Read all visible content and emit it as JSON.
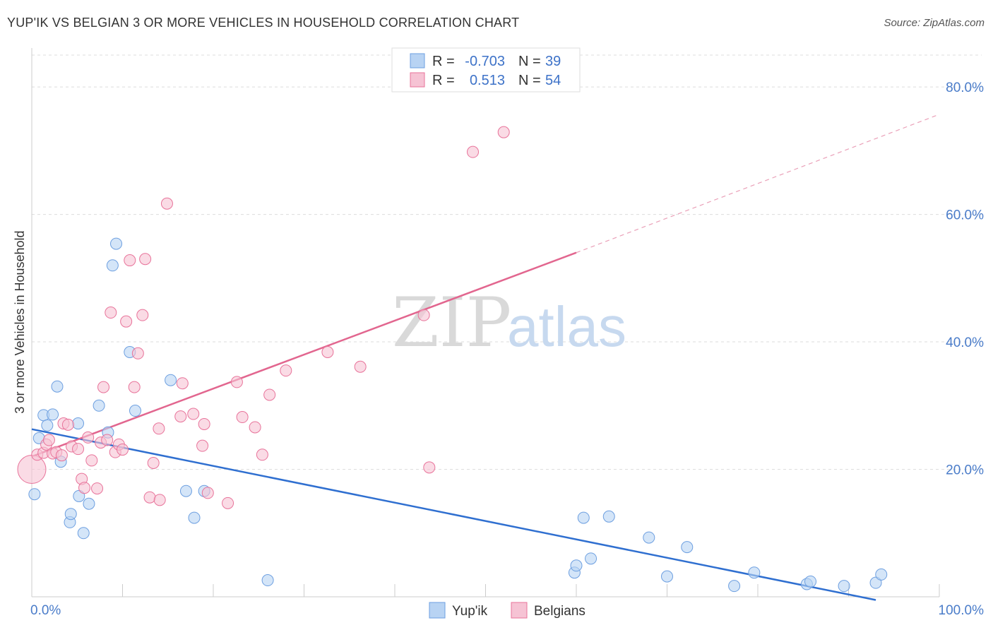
{
  "header": {
    "title": "YUP'IK VS BELGIAN 3 OR MORE VEHICLES IN HOUSEHOLD CORRELATION CHART",
    "source": "Source: ZipAtlas.com"
  },
  "watermark": {
    "zip": "ZIP",
    "atlas": "atlas"
  },
  "legend": {
    "rows": [
      {
        "r_label": "R =",
        "r_value": "-0.703",
        "n_label": "N =",
        "n_value": "39"
      },
      {
        "r_label": "R =",
        "r_value": "0.513",
        "n_label": "N =",
        "n_value": "54"
      }
    ]
  },
  "chart_data": {
    "type": "scatter",
    "title": "YUP'IK VS BELGIAN 3 OR MORE VEHICLES IN HOUSEHOLD CORRELATION CHART",
    "ylabel": "3 or more Vehicles in Household",
    "xlabel": "",
    "xlim": [
      0,
      100
    ],
    "ylim": [
      0,
      85
    ],
    "x_tick_labels": [
      {
        "value": 0,
        "label": "0.0%"
      },
      {
        "value": 100,
        "label": "100.0%"
      }
    ],
    "y_tick_labels": [
      {
        "value": 20,
        "label": "20.0%"
      },
      {
        "value": 40,
        "label": "40.0%"
      },
      {
        "value": 60,
        "label": "60.0%"
      },
      {
        "value": 80,
        "label": "80.0%"
      }
    ],
    "grid": true,
    "legend_position": "top-center",
    "series": [
      {
        "name": "Yup'ik",
        "color": "#6d9fe0",
        "fill": "#b8d3f3",
        "trend": {
          "x": [
            0,
            93
          ],
          "y": [
            26.3,
            -0.5
          ]
        },
        "points": [
          [
            0.3,
            16.1
          ],
          [
            0.8,
            24.9
          ],
          [
            1.3,
            28.5
          ],
          [
            1.7,
            26.9
          ],
          [
            2.3,
            28.6
          ],
          [
            2.8,
            33.0
          ],
          [
            3.2,
            21.2
          ],
          [
            4.2,
            11.7
          ],
          [
            4.3,
            13.0
          ],
          [
            5.1,
            27.2
          ],
          [
            5.2,
            15.8
          ],
          [
            5.7,
            10.0
          ],
          [
            6.3,
            14.6
          ],
          [
            7.4,
            30.0
          ],
          [
            8.4,
            25.8
          ],
          [
            8.9,
            52.0
          ],
          [
            9.3,
            55.4
          ],
          [
            10.8,
            38.4
          ],
          [
            11.4,
            29.2
          ],
          [
            15.3,
            34.0
          ],
          [
            17.0,
            16.6
          ],
          [
            17.9,
            12.4
          ],
          [
            19.0,
            16.6
          ],
          [
            26.0,
            2.6
          ],
          [
            59.8,
            3.8
          ],
          [
            60.0,
            4.9
          ],
          [
            60.8,
            12.4
          ],
          [
            61.6,
            6.0
          ],
          [
            63.6,
            12.6
          ],
          [
            68.0,
            9.3
          ],
          [
            70.0,
            3.2
          ],
          [
            72.2,
            7.8
          ],
          [
            77.4,
            1.7
          ],
          [
            79.6,
            3.8
          ],
          [
            85.4,
            2.0
          ],
          [
            85.8,
            2.4
          ],
          [
            89.5,
            1.7
          ],
          [
            93.0,
            2.2
          ],
          [
            93.6,
            3.5
          ]
        ]
      },
      {
        "name": "Belgians",
        "color": "#e8739a",
        "fill": "#f6c3d4",
        "trend": {
          "x": [
            0,
            60
          ],
          "y": [
            22.0,
            54.0
          ]
        },
        "trend_extension": {
          "x": [
            60,
            100
          ],
          "y": [
            54.0,
            75.7
          ]
        },
        "points": [
          [
            0.0,
            20.0
          ],
          [
            0.6,
            22.3
          ],
          [
            1.3,
            22.6
          ],
          [
            1.6,
            23.9
          ],
          [
            1.9,
            24.6
          ],
          [
            2.3,
            22.5
          ],
          [
            2.7,
            22.7
          ],
          [
            3.3,
            22.2
          ],
          [
            3.5,
            27.2
          ],
          [
            4.0,
            27.0
          ],
          [
            4.4,
            23.6
          ],
          [
            5.1,
            23.2
          ],
          [
            5.5,
            18.5
          ],
          [
            5.8,
            17.1
          ],
          [
            6.2,
            25.0
          ],
          [
            6.6,
            21.4
          ],
          [
            7.2,
            17.0
          ],
          [
            7.6,
            24.2
          ],
          [
            7.9,
            32.9
          ],
          [
            8.3,
            24.6
          ],
          [
            8.7,
            44.6
          ],
          [
            9.2,
            22.7
          ],
          [
            9.6,
            23.9
          ],
          [
            10.0,
            23.1
          ],
          [
            10.4,
            43.2
          ],
          [
            10.8,
            52.8
          ],
          [
            11.3,
            32.9
          ],
          [
            11.7,
            38.2
          ],
          [
            12.2,
            44.2
          ],
          [
            12.5,
            53.0
          ],
          [
            13.0,
            15.6
          ],
          [
            13.4,
            21.0
          ],
          [
            14.0,
            26.4
          ],
          [
            14.1,
            15.2
          ],
          [
            14.9,
            61.7
          ],
          [
            16.4,
            28.3
          ],
          [
            16.6,
            33.5
          ],
          [
            17.8,
            28.7
          ],
          [
            18.8,
            23.7
          ],
          [
            19.0,
            27.1
          ],
          [
            19.4,
            16.3
          ],
          [
            21.6,
            14.7
          ],
          [
            22.6,
            33.7
          ],
          [
            23.2,
            28.2
          ],
          [
            24.6,
            26.6
          ],
          [
            25.4,
            22.3
          ],
          [
            26.2,
            31.7
          ],
          [
            28.0,
            35.5
          ],
          [
            32.6,
            38.4
          ],
          [
            36.2,
            36.1
          ],
          [
            43.2,
            44.2
          ],
          [
            43.8,
            20.3
          ],
          [
            48.6,
            69.8
          ],
          [
            52.0,
            72.9
          ]
        ]
      }
    ]
  }
}
